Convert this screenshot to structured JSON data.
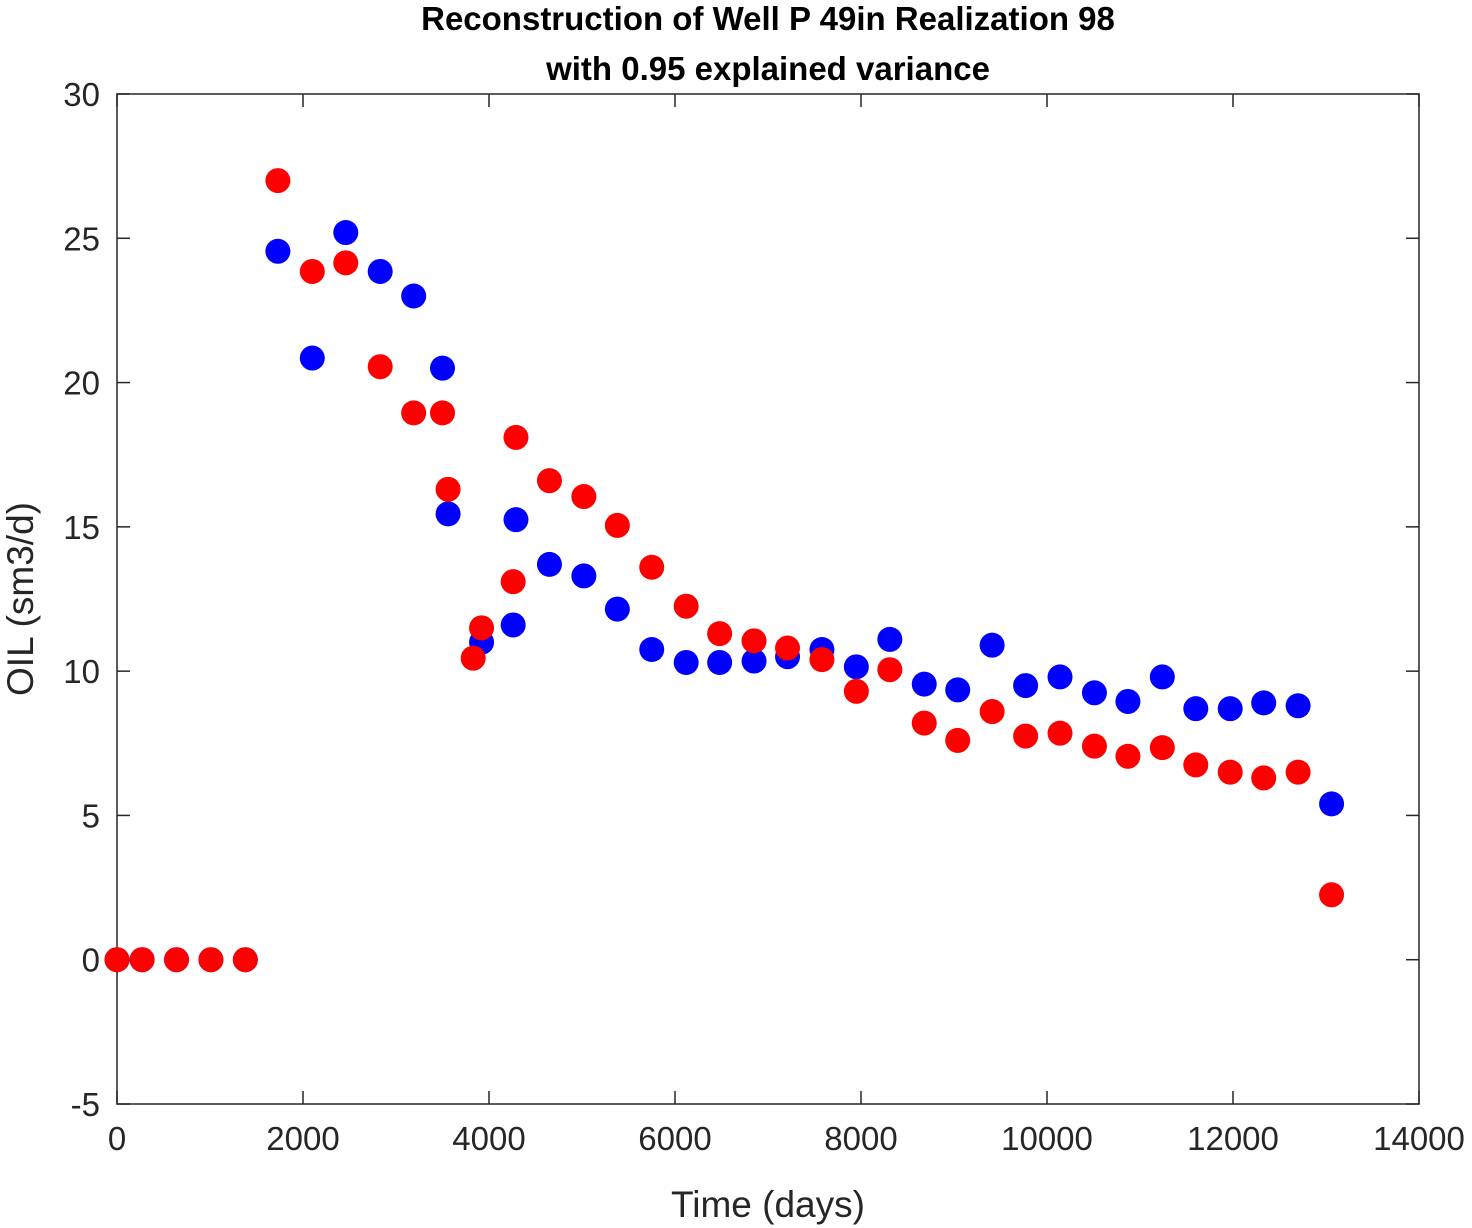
{
  "chart_data": {
    "type": "scatter",
    "title": [
      "Reconstruction of Well P 49in Realization 98",
      "with 0.95 explained variance"
    ],
    "xlabel": "Time (days)",
    "ylabel": "OIL (sm3/d)",
    "xlim": [
      0,
      14000
    ],
    "ylim": [
      -5,
      30
    ],
    "xticks": [
      0,
      2000,
      4000,
      6000,
      8000,
      10000,
      12000,
      14000
    ],
    "yticks": [
      -5,
      0,
      5,
      10,
      15,
      20,
      25,
      30
    ],
    "xtick_labels": [
      "0",
      "2000",
      "4000",
      "6000",
      "8000",
      "10000",
      "12000",
      "14000"
    ],
    "ytick_labels": [
      "-5",
      "0",
      "5",
      "10",
      "15",
      "20",
      "25",
      "30"
    ],
    "grid": false,
    "series": [
      {
        "color": "#0000ff",
        "x": [
          0,
          270,
          640,
          1010,
          1380,
          1730,
          2100,
          2460,
          2830,
          3190,
          3500,
          3560,
          3920,
          4260,
          4290,
          4650,
          5020,
          5380,
          5750,
          6120,
          6480,
          6850,
          7210,
          7580,
          7950,
          8310,
          8680,
          9040,
          9410,
          9770,
          10140,
          10510,
          10870,
          11240,
          11600,
          11970,
          12330,
          12700,
          13060
        ],
        "y": [
          0,
          0,
          0,
          0,
          0,
          24.55,
          20.85,
          25.2,
          23.85,
          23.0,
          20.5,
          15.45,
          11.0,
          11.6,
          15.25,
          13.7,
          13.3,
          12.15,
          10.75,
          10.3,
          10.3,
          10.35,
          10.5,
          10.75,
          10.15,
          11.1,
          9.55,
          9.35,
          10.9,
          9.5,
          9.8,
          9.25,
          8.95,
          9.8,
          8.7,
          8.7,
          8.9,
          8.8,
          5.4
        ]
      },
      {
        "color": "#ff0000",
        "x": [
          0,
          270,
          640,
          1010,
          1380,
          1730,
          2100,
          2460,
          2830,
          3190,
          3500,
          3560,
          3830,
          3920,
          4260,
          4290,
          4650,
          5020,
          5380,
          5750,
          6120,
          6480,
          6850,
          7210,
          7580,
          7950,
          8310,
          8680,
          9040,
          9410,
          9770,
          10140,
          10510,
          10870,
          11240,
          11600,
          11970,
          12330,
          12700,
          13060
        ],
        "y": [
          0,
          0,
          0,
          0,
          0,
          27.0,
          23.85,
          24.15,
          20.55,
          18.95,
          18.95,
          16.3,
          10.45,
          11.5,
          13.1,
          18.1,
          16.6,
          16.05,
          15.05,
          13.6,
          12.25,
          11.3,
          11.05,
          10.8,
          10.4,
          9.3,
          10.05,
          8.2,
          7.6,
          8.6,
          7.75,
          7.85,
          7.4,
          7.05,
          7.35,
          6.75,
          6.5,
          6.3,
          6.5,
          2.25
        ]
      }
    ]
  }
}
